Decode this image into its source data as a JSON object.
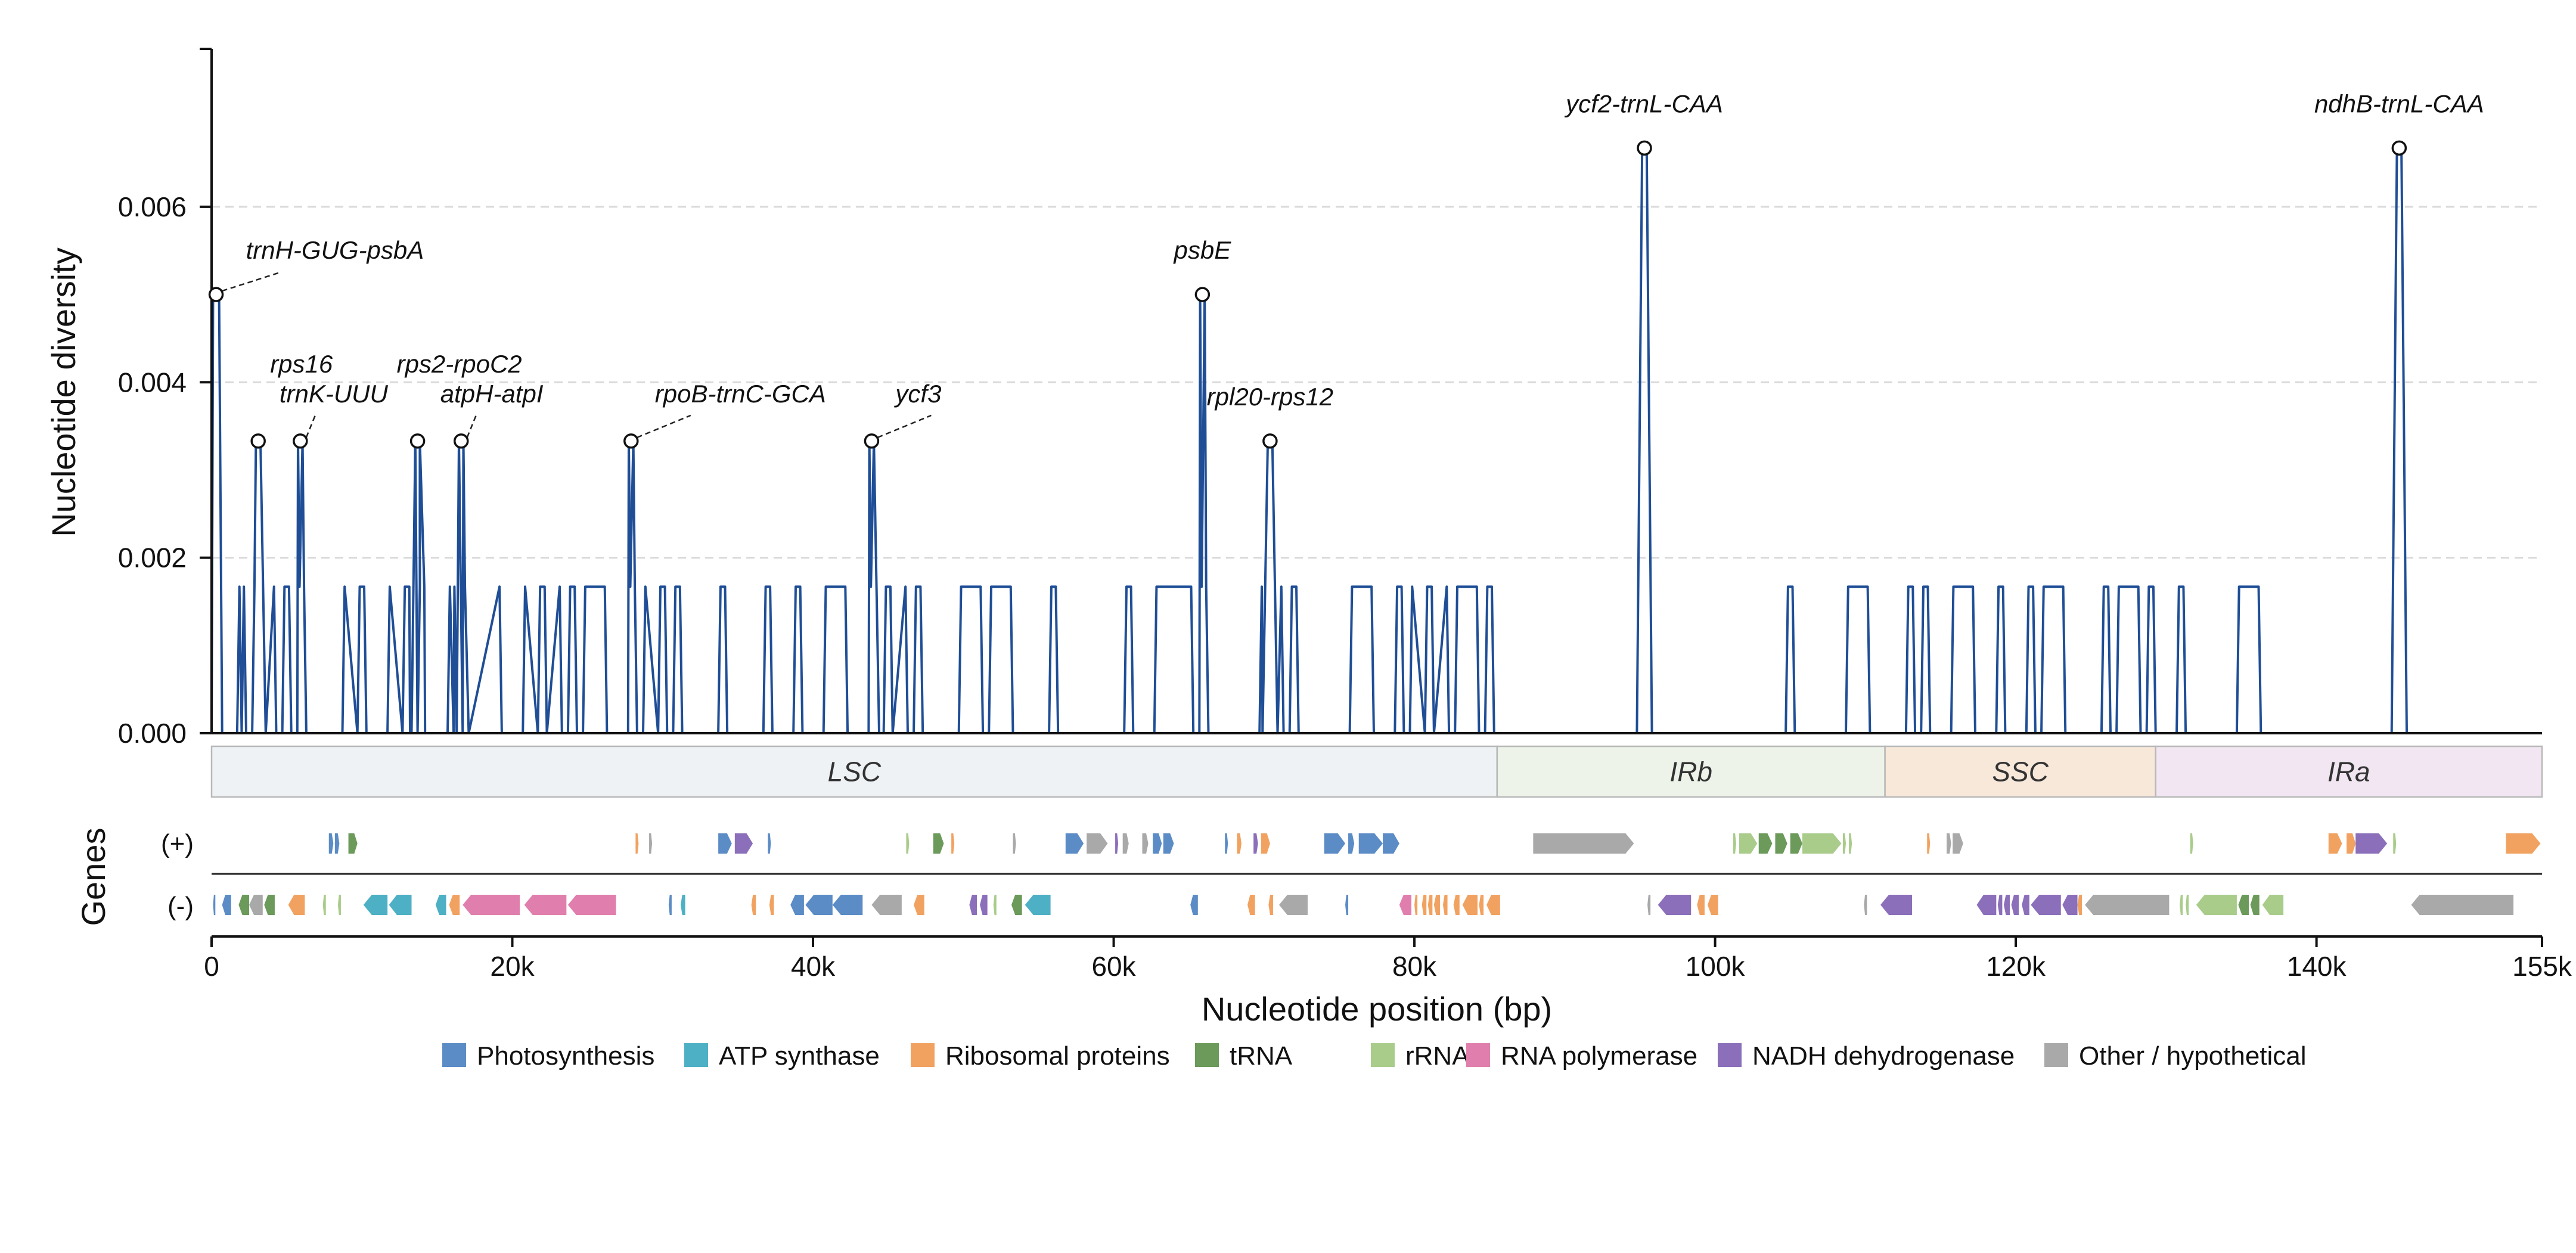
{
  "chart_data": {
    "type": "line",
    "xlabel": "Nucleotide position (bp)",
    "ylabel": "Nucleotide diversity",
    "xlim": [
      0,
      155000
    ],
    "ylim": [
      0,
      0.0078
    ],
    "x_ticks": [
      0,
      20000,
      40000,
      60000,
      80000,
      100000,
      120000,
      140000,
      155000
    ],
    "x_tick_labels": [
      "0",
      "20k",
      "40k",
      "60k",
      "80k",
      "100k",
      "120k",
      "140k",
      "155k"
    ],
    "y_ticks": [
      0,
      0.002,
      0.004,
      0.006
    ],
    "y_tick_labels": [
      "0.000",
      "0.002",
      "0.004",
      "0.006"
    ],
    "grid": "horizontal dashed",
    "line_color": "#1f4e96",
    "base_level": 0.00167,
    "windows": [
      [
        0,
        2,
        0
      ],
      [
        2,
        2,
        0.00167
      ],
      [
        3,
        4,
        0.00167
      ],
      [
        5,
        5,
        0.00167
      ],
      [
        6,
        6,
        0.00167
      ],
      [
        9,
        10,
        0.00167
      ],
      [
        10,
        10,
        0.00167
      ],
      [
        12,
        13,
        0.00167
      ],
      [
        13,
        13,
        0.00167
      ],
      [
        14,
        14,
        0.00167
      ],
      [
        16,
        16,
        0.00167
      ],
      [
        17,
        19,
        0.00167
      ],
      [
        21,
        22,
        0.00167
      ],
      [
        22,
        23,
        0.00167
      ],
      [
        24,
        24,
        0.00167
      ],
      [
        25,
        26,
        0.00167
      ],
      [
        28,
        28,
        0.00167
      ],
      [
        29,
        30,
        0.00167
      ],
      [
        30,
        31,
        0.00167
      ],
      [
        31,
        31,
        0.00167
      ],
      [
        34,
        34,
        0.00167
      ],
      [
        37,
        37,
        0.00167
      ],
      [
        39,
        39,
        0.00167
      ],
      [
        41,
        42,
        0.00167
      ],
      [
        44,
        45,
        0.00167
      ],
      [
        45,
        46,
        0.00167
      ],
      [
        47,
        47,
        0.00167
      ],
      [
        50,
        51,
        0.00167
      ],
      [
        52,
        53,
        0.00167
      ],
      [
        56,
        56,
        0.00167
      ],
      [
        61,
        61,
        0.00167
      ],
      [
        63,
        65,
        0.00167
      ],
      [
        66,
        66,
        0.00167
      ],
      [
        70,
        71,
        0.00167
      ],
      [
        72,
        72,
        0.00167
      ],
      [
        76,
        77,
        0.00167
      ],
      [
        79,
        79,
        0.00167
      ],
      [
        80,
        81,
        0.00167
      ],
      [
        81,
        82,
        0.00167
      ],
      [
        83,
        84,
        0.00167
      ],
      [
        85,
        85,
        0.00167
      ],
      [
        105,
        105,
        0.00167
      ],
      [
        109,
        110,
        0.00167
      ],
      [
        113,
        113,
        0.00167
      ],
      [
        114,
        114,
        0.00167
      ],
      [
        116,
        117,
        0.00167
      ],
      [
        119,
        119,
        0.00167
      ],
      [
        121,
        121,
        0.00167
      ],
      [
        122,
        123,
        0.00167
      ],
      [
        126,
        126,
        0.00167
      ],
      [
        127,
        128,
        0.00167
      ],
      [
        129,
        129,
        0.00167
      ],
      [
        131,
        131,
        0.00167
      ],
      [
        135,
        136,
        0.00167
      ]
    ],
    "peaks": [
      {
        "x": 300,
        "y": 0.005,
        "label": "trnH-GUG-psbA"
      },
      {
        "x": 3100,
        "y": 0.00333,
        "label": "rps16"
      },
      {
        "x": 5900,
        "y": 0.00333,
        "label": "trnK-UUU"
      },
      {
        "x": 13700,
        "y": 0.00333,
        "label": "rps2-rpoC2"
      },
      {
        "x": 16600,
        "y": 0.00333,
        "label": "atpH-atpI"
      },
      {
        "x": 27900,
        "y": 0.00333,
        "label": "rpoB-trnC-GCA"
      },
      {
        "x": 43900,
        "y": 0.00333,
        "label": "ycf3"
      },
      {
        "x": 65900,
        "y": 0.005,
        "label": "psbE"
      },
      {
        "x": 70400,
        "y": 0.00333,
        "label": "rpl20-rps12"
      },
      {
        "x": 95300,
        "y": 0.00667,
        "label": "ycf2-trnL-CAA"
      },
      {
        "x": 145500,
        "y": 0.00667,
        "label": "ndhB-trnL-CAA"
      }
    ],
    "regions": [
      {
        "name": "LSC",
        "start": 0,
        "end": 85500,
        "color": "#eef2f5"
      },
      {
        "name": "IRb",
        "start": 85500,
        "end": 111300,
        "color": "#edf3e9"
      },
      {
        "name": "SSC",
        "start": 111300,
        "end": 129300,
        "color": "#f8e8da"
      },
      {
        "name": "IRa",
        "start": 129300,
        "end": 155000,
        "color": "#f1e6f1"
      }
    ],
    "genes_axis_label": "Genes",
    "strand_labels": [
      "(+)",
      "(-)"
    ],
    "gene_categories": [
      {
        "name": "Photosynthesis",
        "color": "#5b8cc6"
      },
      {
        "name": "ATP synthase",
        "color": "#4eb0c4"
      },
      {
        "name": "Ribosomal proteins",
        "color": "#f1a261"
      },
      {
        "name": "tRNA",
        "color": "#6b9a5a"
      },
      {
        "name": "rRNA",
        "color": "#a9cc8b"
      },
      {
        "name": "RNA polymerase",
        "color": "#e07fae"
      },
      {
        "name": "NADH dehydrogenase",
        "color": "#8c6fba"
      },
      {
        "name": "Other / hypothetical",
        "color": "#a9a9a9"
      }
    ],
    "genes_plus": [
      [
        7800,
        8100,
        0
      ],
      [
        8200,
        8500,
        0
      ],
      [
        9100,
        9700,
        3
      ],
      [
        28200,
        28400,
        2
      ],
      [
        29100,
        29300,
        7
      ],
      [
        33700,
        34600,
        0
      ],
      [
        34800,
        36000,
        6
      ],
      [
        37000,
        37200,
        0
      ],
      [
        46200,
        46400,
        4
      ],
      [
        48000,
        48700,
        3
      ],
      [
        49200,
        49400,
        2
      ],
      [
        53300,
        53500,
        7
      ],
      [
        56800,
        58000,
        0
      ],
      [
        58200,
        59600,
        7
      ],
      [
        60100,
        60300,
        6
      ],
      [
        60600,
        61000,
        7
      ],
      [
        61900,
        62300,
        7
      ],
      [
        62600,
        63200,
        0
      ],
      [
        63300,
        64000,
        0
      ],
      [
        67400,
        67600,
        0
      ],
      [
        68200,
        68500,
        2
      ],
      [
        69300,
        69600,
        6
      ],
      [
        69800,
        70400,
        2
      ],
      [
        74000,
        75400,
        0
      ],
      [
        75600,
        76000,
        0
      ],
      [
        76300,
        77900,
        0
      ],
      [
        77900,
        79000,
        0
      ],
      [
        87900,
        94600,
        7
      ],
      [
        101200,
        101400,
        4
      ],
      [
        101600,
        102800,
        4
      ],
      [
        102900,
        103800,
        3
      ],
      [
        104000,
        104800,
        3
      ],
      [
        105000,
        105800,
        3
      ],
      [
        105800,
        108400,
        4
      ],
      [
        108500,
        108700,
        4
      ],
      [
        108900,
        109100,
        4
      ],
      [
        114100,
        114300,
        2
      ],
      [
        115400,
        115700,
        7
      ],
      [
        115800,
        116500,
        7
      ],
      [
        131600,
        131800,
        4
      ],
      [
        140800,
        141700,
        2
      ],
      [
        142000,
        142600,
        2
      ],
      [
        142600,
        144700,
        6
      ],
      [
        145100,
        145300,
        4
      ],
      [
        152600,
        154900,
        2
      ]
    ],
    "genes_minus": [
      [
        100,
        250,
        0
      ],
      [
        700,
        1300,
        0
      ],
      [
        1800,
        2500,
        3
      ],
      [
        2500,
        3400,
        7
      ],
      [
        3500,
        4200,
        3
      ],
      [
        5100,
        6200,
        2
      ],
      [
        7400,
        7600,
        4
      ],
      [
        8400,
        8600,
        4
      ],
      [
        10100,
        11700,
        1
      ],
      [
        11800,
        13300,
        1
      ],
      [
        14900,
        15600,
        1
      ],
      [
        15800,
        16500,
        2
      ],
      [
        16700,
        20500,
        5
      ],
      [
        20800,
        23600,
        5
      ],
      [
        23700,
        26900,
        5
      ],
      [
        30400,
        30600,
        0
      ],
      [
        31200,
        31500,
        1
      ],
      [
        35900,
        36200,
        2
      ],
      [
        37100,
        37400,
        2
      ],
      [
        38500,
        39400,
        0
      ],
      [
        39500,
        41300,
        0
      ],
      [
        41300,
        43300,
        0
      ],
      [
        43900,
        45900,
        7
      ],
      [
        46700,
        47400,
        2
      ],
      [
        50400,
        50900,
        6
      ],
      [
        51100,
        51600,
        6
      ],
      [
        52000,
        52200,
        4
      ],
      [
        53200,
        53900,
        3
      ],
      [
        54100,
        55800,
        1
      ],
      [
        65100,
        65600,
        0
      ],
      [
        68900,
        69400,
        2
      ],
      [
        70300,
        70600,
        2
      ],
      [
        71000,
        72900,
        7
      ],
      [
        75400,
        75600,
        0
      ],
      [
        79000,
        79800,
        5
      ],
      [
        80000,
        80200,
        2
      ],
      [
        80500,
        80800,
        2
      ],
      [
        80900,
        81200,
        2
      ],
      [
        81300,
        81700,
        2
      ],
      [
        81900,
        82200,
        2
      ],
      [
        82600,
        83000,
        2
      ],
      [
        83200,
        84200,
        2
      ],
      [
        84300,
        84600,
        2
      ],
      [
        84800,
        85700,
        2
      ],
      [
        95500,
        95700,
        7
      ],
      [
        96200,
        98400,
        6
      ],
      [
        98800,
        99300,
        2
      ],
      [
        99500,
        100200,
        2
      ],
      [
        109900,
        110100,
        7
      ],
      [
        111000,
        113100,
        6
      ],
      [
        117400,
        118700,
        6
      ],
      [
        118800,
        119100,
        6
      ],
      [
        119200,
        119600,
        6
      ],
      [
        119700,
        120200,
        6
      ],
      [
        120400,
        120900,
        6
      ],
      [
        121000,
        123000,
        6
      ],
      [
        123100,
        124100,
        6
      ],
      [
        124100,
        124400,
        2
      ],
      [
        124600,
        130200,
        7
      ],
      [
        130900,
        131100,
        4
      ],
      [
        131300,
        131500,
        4
      ],
      [
        132000,
        134700,
        4
      ],
      [
        134800,
        135500,
        3
      ],
      [
        135600,
        136200,
        3
      ],
      [
        136400,
        137800,
        4
      ],
      [
        146300,
        153100,
        7
      ]
    ]
  }
}
